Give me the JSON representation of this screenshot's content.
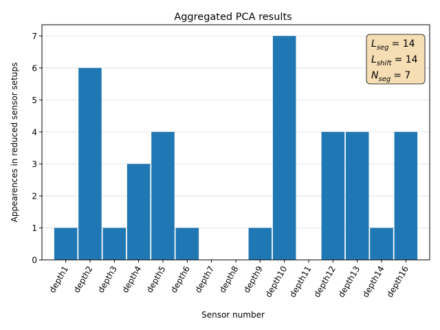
{
  "chart_data": {
    "type": "bar",
    "title": "Aggregated PCA results",
    "xlabel": "Sensor number",
    "ylabel": "Appearences in reduced sensor setups",
    "categories": [
      "depth1",
      "depth2",
      "depth3",
      "depth4",
      "depth5",
      "depth6",
      "depth7",
      "depth8",
      "depth9",
      "depth10",
      "depth11",
      "depth12",
      "depth13",
      "depth14",
      "depth16"
    ],
    "values": [
      1,
      6,
      1,
      3,
      4,
      1,
      0,
      0,
      1,
      7,
      0,
      4,
      4,
      1,
      4
    ],
    "ylim": [
      0,
      7.35
    ],
    "yticks": [
      0,
      1,
      2,
      3,
      4,
      5,
      6,
      7
    ],
    "grid": "horizontal",
    "bar_color": "#1f77b4",
    "annotation": {
      "placement": "top-right",
      "background": "#f5deb3",
      "lines": [
        {
          "symbol": "L",
          "sub": "seg",
          "value": "= 14"
        },
        {
          "symbol": "L",
          "sub": "shift",
          "value": "= 14"
        },
        {
          "symbol": "N",
          "sub": "seg",
          "value": "= 7"
        }
      ]
    }
  }
}
